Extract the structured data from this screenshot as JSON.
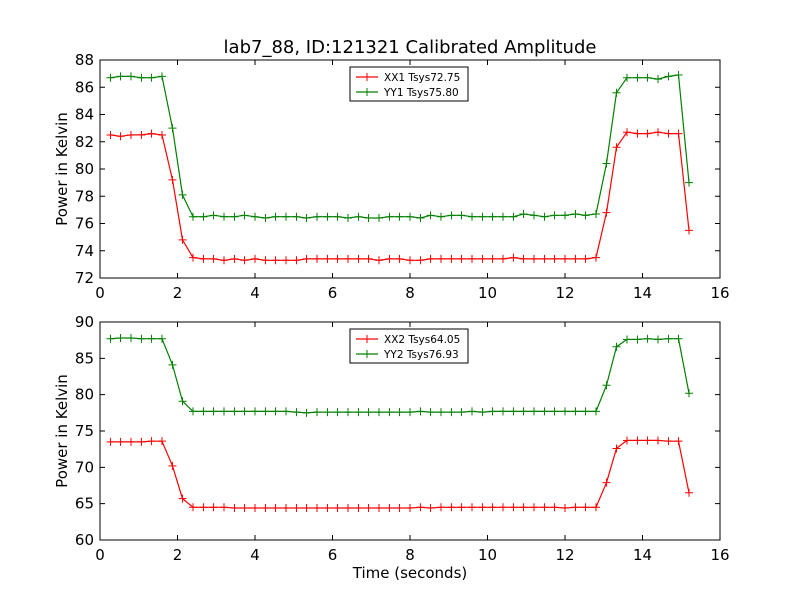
{
  "title": "lab7_88, ID:121321 Calibrated Amplitude",
  "chart_data": [
    {
      "type": "line",
      "xlabel": "",
      "ylabel": "Power in Kelvin",
      "xlim": [
        0,
        16
      ],
      "ylim": [
        72,
        88
      ],
      "xticks": [
        0,
        2,
        4,
        6,
        8,
        10,
        12,
        14,
        16
      ],
      "yticks": [
        72,
        74,
        76,
        78,
        80,
        82,
        84,
        86,
        88
      ],
      "legend_position": "top-center",
      "x": [
        0.27,
        0.53,
        0.8,
        1.07,
        1.33,
        1.6,
        1.87,
        2.13,
        2.4,
        2.67,
        2.93,
        3.2,
        3.47,
        3.73,
        4.0,
        4.27,
        4.53,
        4.8,
        5.07,
        5.33,
        5.6,
        5.87,
        6.13,
        6.4,
        6.67,
        6.93,
        7.2,
        7.47,
        7.73,
        8.0,
        8.27,
        8.53,
        8.8,
        9.07,
        9.33,
        9.6,
        9.87,
        10.13,
        10.4,
        10.67,
        10.93,
        11.2,
        11.47,
        11.73,
        12.0,
        12.27,
        12.53,
        12.8,
        13.07,
        13.33,
        13.6,
        13.87,
        14.13,
        14.4,
        14.67,
        14.93,
        15.2
      ],
      "series": [
        {
          "name": "XX1 Tsys72.75",
          "color": "#ff0000",
          "values": [
            82.5,
            82.4,
            82.5,
            82.5,
            82.6,
            82.5,
            79.2,
            74.8,
            73.5,
            73.4,
            73.4,
            73.3,
            73.4,
            73.3,
            73.4,
            73.3,
            73.3,
            73.3,
            73.3,
            73.4,
            73.4,
            73.4,
            73.4,
            73.4,
            73.4,
            73.4,
            73.3,
            73.4,
            73.4,
            73.3,
            73.3,
            73.4,
            73.4,
            73.4,
            73.4,
            73.4,
            73.4,
            73.4,
            73.4,
            73.5,
            73.4,
            73.4,
            73.4,
            73.4,
            73.4,
            73.4,
            73.4,
            73.5,
            76.8,
            81.6,
            82.7,
            82.6,
            82.6,
            82.7,
            82.6,
            82.6,
            75.5
          ]
        },
        {
          "name": "YY1 Tsys75.80",
          "color": "#008000",
          "values": [
            86.7,
            86.8,
            86.8,
            86.7,
            86.7,
            86.8,
            83.0,
            78.1,
            76.5,
            76.5,
            76.6,
            76.5,
            76.5,
            76.6,
            76.5,
            76.4,
            76.5,
            76.5,
            76.5,
            76.4,
            76.5,
            76.5,
            76.5,
            76.4,
            76.5,
            76.4,
            76.4,
            76.5,
            76.5,
            76.5,
            76.4,
            76.6,
            76.5,
            76.6,
            76.6,
            76.5,
            76.5,
            76.5,
            76.5,
            76.5,
            76.7,
            76.6,
            76.5,
            76.6,
            76.6,
            76.7,
            76.6,
            76.7,
            80.4,
            85.6,
            86.7,
            86.7,
            86.7,
            86.6,
            86.8,
            86.9,
            79.0
          ]
        }
      ]
    },
    {
      "type": "line",
      "xlabel": "Time (seconds)",
      "ylabel": "Power in Kelvin",
      "xlim": [
        0,
        16
      ],
      "ylim": [
        60,
        90
      ],
      "xticks": [
        0,
        2,
        4,
        6,
        8,
        10,
        12,
        14,
        16
      ],
      "yticks": [
        60,
        65,
        70,
        75,
        80,
        85,
        90
      ],
      "legend_position": "top-center",
      "x": [
        0.27,
        0.53,
        0.8,
        1.07,
        1.33,
        1.6,
        1.87,
        2.13,
        2.4,
        2.67,
        2.93,
        3.2,
        3.47,
        3.73,
        4.0,
        4.27,
        4.53,
        4.8,
        5.07,
        5.33,
        5.6,
        5.87,
        6.13,
        6.4,
        6.67,
        6.93,
        7.2,
        7.47,
        7.73,
        8.0,
        8.27,
        8.53,
        8.8,
        9.07,
        9.33,
        9.6,
        9.87,
        10.13,
        10.4,
        10.67,
        10.93,
        11.2,
        11.47,
        11.73,
        12.0,
        12.27,
        12.53,
        12.8,
        13.07,
        13.33,
        13.6,
        13.87,
        14.13,
        14.4,
        14.67,
        14.93,
        15.2
      ],
      "series": [
        {
          "name": "XX2 Tsys64.05",
          "color": "#ff0000",
          "values": [
            73.5,
            73.5,
            73.5,
            73.5,
            73.6,
            73.6,
            70.2,
            65.7,
            64.5,
            64.5,
            64.5,
            64.5,
            64.4,
            64.4,
            64.4,
            64.4,
            64.4,
            64.4,
            64.4,
            64.4,
            64.4,
            64.4,
            64.4,
            64.4,
            64.4,
            64.4,
            64.4,
            64.4,
            64.4,
            64.4,
            64.5,
            64.4,
            64.5,
            64.5,
            64.5,
            64.5,
            64.5,
            64.5,
            64.5,
            64.5,
            64.5,
            64.5,
            64.5,
            64.5,
            64.4,
            64.5,
            64.5,
            64.5,
            67.9,
            72.6,
            73.7,
            73.7,
            73.7,
            73.7,
            73.6,
            73.6,
            66.5
          ]
        },
        {
          "name": "YY2 Tsys76.93",
          "color": "#008000",
          "values": [
            87.7,
            87.8,
            87.8,
            87.7,
            87.7,
            87.7,
            84.1,
            79.1,
            77.7,
            77.7,
            77.7,
            77.7,
            77.7,
            77.7,
            77.7,
            77.7,
            77.7,
            77.7,
            77.6,
            77.5,
            77.6,
            77.6,
            77.6,
            77.6,
            77.6,
            77.6,
            77.6,
            77.6,
            77.6,
            77.6,
            77.7,
            77.6,
            77.6,
            77.6,
            77.6,
            77.7,
            77.6,
            77.7,
            77.7,
            77.7,
            77.7,
            77.7,
            77.7,
            77.7,
            77.7,
            77.7,
            77.7,
            77.7,
            81.3,
            86.6,
            87.6,
            87.6,
            87.7,
            87.6,
            87.7,
            87.7,
            80.2
          ]
        }
      ]
    }
  ]
}
